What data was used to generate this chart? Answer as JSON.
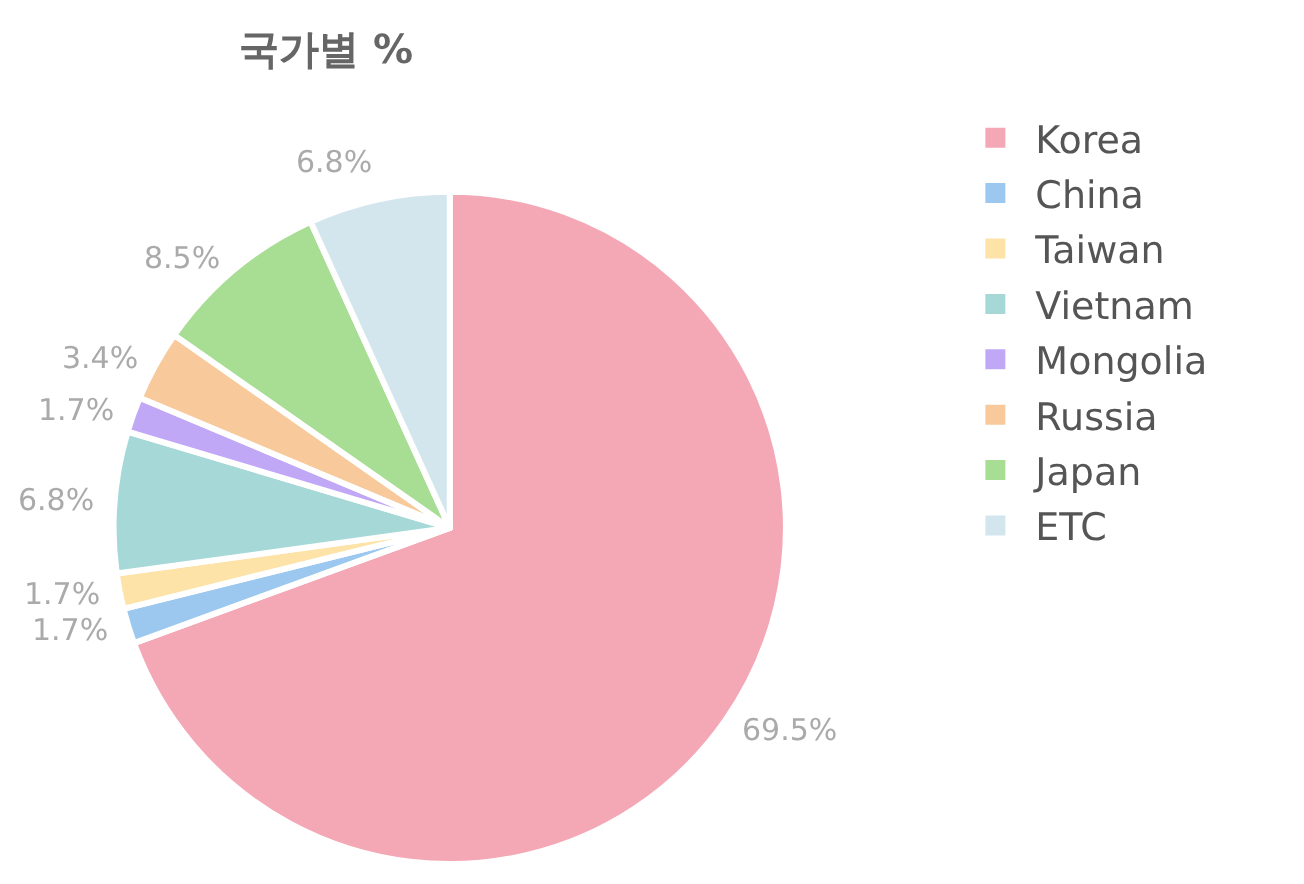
{
  "chart_data": {
    "type": "pie",
    "title": "국가별 %",
    "categories": [
      "Korea",
      "China",
      "Taiwan",
      "Vietnam",
      "Mongolia",
      "Russia",
      "Japan",
      "ETC"
    ],
    "values": [
      69.5,
      1.7,
      1.7,
      6.8,
      1.7,
      3.4,
      8.5,
      6.8
    ],
    "value_labels": [
      "69.5%",
      "1.7%",
      "1.7%",
      "6.8%",
      "1.7%",
      "3.4%",
      "8.5%",
      "6.8%"
    ],
    "colors": [
      "#f4a7b5",
      "#9cc8f0",
      "#fde3a7",
      "#a7d8d8",
      "#c1a8f7",
      "#f7c99b",
      "#a8dd94",
      "#d3e6ee"
    ],
    "legend": "right"
  }
}
